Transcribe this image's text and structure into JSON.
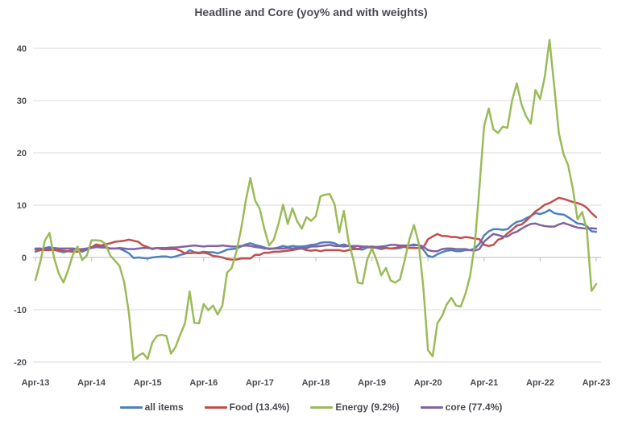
{
  "title": "Headline and Core (yoy% and with weights)",
  "colors": {
    "grid": "#e2e2e2",
    "axis": "#c6c6c6",
    "text": "#4a4a52",
    "background": "#ffffff",
    "series_blue": "#4F81BD",
    "series_red": "#C0504D",
    "series_green": "#9BBB59",
    "series_purple": "#8064A2"
  },
  "y_axis": {
    "tick_labels": [
      "40",
      "30",
      "20",
      "10",
      "0",
      "-10",
      "-20"
    ],
    "tick_values": [
      40,
      30,
      20,
      10,
      0,
      -10,
      -20
    ],
    "min": -20,
    "max": 40
  },
  "x_axis": {
    "tick_labels": [
      "Apr-13",
      "Apr-14",
      "Apr-15",
      "Apr-16",
      "Apr-17",
      "Apr-18",
      "Apr-19",
      "Apr-20",
      "Apr-21",
      "Apr-22",
      "Apr-23"
    ]
  },
  "chart_data": {
    "type": "line",
    "title": "Headline and Core (yoy% and with weights)",
    "x_unit": "month",
    "x_range": "Apr-2013 to Apr-2023 (monthly, 121 points)",
    "x_tick_labels": [
      "Apr-13",
      "Apr-14",
      "Apr-15",
      "Apr-16",
      "Apr-17",
      "Apr-18",
      "Apr-19",
      "Apr-20",
      "Apr-21",
      "Apr-22",
      "Apr-23"
    ],
    "ylim": [
      -20,
      40
    ],
    "grid": "horizontal",
    "legend_position": "bottom",
    "series": [
      {
        "name": "all items",
        "color": "#4F81BD",
        "values": [
          1.1,
          1.4,
          1.8,
          2.0,
          1.5,
          1.2,
          1.0,
          1.2,
          1.5,
          1.6,
          1.1,
          1.5,
          2.0,
          2.1,
          2.1,
          2.0,
          1.7,
          1.7,
          1.7,
          1.3,
          0.8,
          -0.1,
          0.0,
          -0.1,
          -0.2,
          0.0,
          0.1,
          0.2,
          0.2,
          0.0,
          0.2,
          0.5,
          0.7,
          1.4,
          1.0,
          0.9,
          1.1,
          1.0,
          1.0,
          0.8,
          1.1,
          1.5,
          1.6,
          1.7,
          2.1,
          2.5,
          2.7,
          2.4,
          2.2,
          1.9,
          1.6,
          1.7,
          1.9,
          2.2,
          2.0,
          2.2,
          2.1,
          2.1,
          2.2,
          2.4,
          2.5,
          2.8,
          2.9,
          2.9,
          2.7,
          2.3,
          2.5,
          2.2,
          1.9,
          1.6,
          1.5,
          1.9,
          2.0,
          1.8,
          1.6,
          1.8,
          1.7,
          1.7,
          1.8,
          2.1,
          2.3,
          2.5,
          2.3,
          1.5,
          0.3,
          0.1,
          0.6,
          1.0,
          1.3,
          1.4,
          1.2,
          1.2,
          1.4,
          1.4,
          1.7,
          2.6,
          4.2,
          5.0,
          5.4,
          5.4,
          5.3,
          5.4,
          6.2,
          6.8,
          7.0,
          7.5,
          7.9,
          8.5,
          8.3,
          8.6,
          9.1,
          8.5,
          8.3,
          8.2,
          7.7,
          7.1,
          6.5,
          6.4,
          6.0,
          5.0,
          4.9
        ]
      },
      {
        "name": "Food (13.4%)",
        "color": "#C0504D",
        "values": [
          1.5,
          1.4,
          1.4,
          1.4,
          1.4,
          1.4,
          1.3,
          1.2,
          1.1,
          1.1,
          1.4,
          1.7,
          1.9,
          2.5,
          2.3,
          2.5,
          2.7,
          3.0,
          3.1,
          3.2,
          3.4,
          3.2,
          3.0,
          2.3,
          2.0,
          1.6,
          1.8,
          1.6,
          1.6,
          1.6,
          1.6,
          1.3,
          0.8,
          0.8,
          0.9,
          0.8,
          0.9,
          0.7,
          0.3,
          0.2,
          0.0,
          -0.3,
          -0.4,
          -0.4,
          -0.2,
          -0.2,
          -0.2,
          0.5,
          0.5,
          0.9,
          0.9,
          1.1,
          1.1,
          1.2,
          1.3,
          1.4,
          1.6,
          1.7,
          1.4,
          1.3,
          1.4,
          1.2,
          1.4,
          1.4,
          1.4,
          1.4,
          1.2,
          1.4,
          1.6,
          1.6,
          2.0,
          2.1,
          1.8,
          2.0,
          1.9,
          1.8,
          1.7,
          1.8,
          2.1,
          2.0,
          1.8,
          1.8,
          1.8,
          1.9,
          3.5,
          4.0,
          4.5,
          4.1,
          4.1,
          3.9,
          3.9,
          3.7,
          3.9,
          3.8,
          3.6,
          3.5,
          2.4,
          2.2,
          2.4,
          3.4,
          3.7,
          4.6,
          5.3,
          6.1,
          6.3,
          7.0,
          7.9,
          8.8,
          9.4,
          10.1,
          10.4,
          10.9,
          11.4,
          11.2,
          10.9,
          10.6,
          10.4,
          10.1,
          9.5,
          8.5,
          7.7
        ]
      },
      {
        "name": "Energy (9.2%)",
        "color": "#9BBB59",
        "values": [
          -4.3,
          -1.0,
          3.2,
          4.7,
          -0.1,
          -3.1,
          -4.8,
          -2.4,
          0.5,
          2.1,
          -0.5,
          0.4,
          3.3,
          3.3,
          3.2,
          2.6,
          0.4,
          -0.6,
          -1.6,
          -4.8,
          -10.6,
          -19.6,
          -18.8,
          -18.3,
          -19.4,
          -16.3,
          -15.0,
          -14.8,
          -15.0,
          -18.4,
          -17.1,
          -14.7,
          -12.6,
          -6.5,
          -12.5,
          -12.6,
          -8.9,
          -10.1,
          -9.2,
          -10.9,
          -9.2,
          -2.9,
          -2.0,
          1.1,
          5.4,
          10.8,
          15.2,
          10.9,
          9.3,
          5.4,
          2.3,
          3.4,
          6.4,
          10.1,
          6.4,
          9.4,
          6.9,
          5.5,
          7.7,
          7.0,
          7.9,
          11.7,
          12.0,
          12.1,
          10.2,
          4.8,
          8.9,
          3.1,
          -0.3,
          -4.8,
          -5.0,
          -0.4,
          1.7,
          -0.5,
          -3.4,
          -2.0,
          -4.4,
          -4.8,
          -4.2,
          -0.6,
          3.4,
          6.2,
          2.8,
          -5.7,
          -17.7,
          -18.9,
          -12.6,
          -11.2,
          -9.0,
          -7.7,
          -9.2,
          -9.4,
          -7.0,
          -3.6,
          2.4,
          13.2,
          25.1,
          28.5,
          24.5,
          23.8,
          25.0,
          24.8,
          30.0,
          33.3,
          29.3,
          27.0,
          25.6,
          32.0,
          30.3,
          34.6,
          41.6,
          32.9,
          23.8,
          19.8,
          17.6,
          13.1,
          7.3,
          8.7,
          5.2,
          -6.4,
          -5.1
        ]
      },
      {
        "name": "core (77.4%)",
        "color": "#8064A2",
        "values": [
          1.7,
          1.7,
          1.6,
          1.7,
          1.8,
          1.7,
          1.7,
          1.7,
          1.7,
          1.6,
          1.6,
          1.7,
          1.8,
          2.0,
          1.9,
          1.9,
          1.7,
          1.7,
          1.8,
          1.7,
          1.6,
          1.6,
          1.7,
          1.8,
          1.8,
          1.7,
          1.8,
          1.8,
          1.8,
          1.9,
          1.9,
          2.0,
          2.1,
          2.2,
          2.3,
          2.2,
          2.1,
          2.2,
          2.2,
          2.2,
          2.3,
          2.2,
          2.1,
          2.1,
          2.2,
          2.3,
          2.2,
          2.0,
          1.9,
          1.7,
          1.7,
          1.7,
          1.7,
          1.7,
          1.8,
          1.7,
          1.8,
          1.8,
          1.8,
          2.1,
          2.1,
          2.2,
          2.3,
          2.4,
          2.2,
          2.2,
          2.1,
          2.2,
          2.2,
          2.2,
          2.1,
          2.0,
          2.1,
          2.0,
          2.1,
          2.2,
          2.4,
          2.4,
          2.3,
          2.3,
          2.3,
          2.3,
          2.4,
          2.1,
          1.4,
          1.2,
          1.2,
          1.6,
          1.7,
          1.7,
          1.6,
          1.6,
          1.6,
          1.4,
          1.3,
          1.6,
          3.0,
          3.8,
          4.5,
          4.3,
          4.0,
          4.0,
          4.6,
          4.9,
          5.5,
          6.0,
          6.4,
          6.5,
          6.2,
          6.0,
          5.9,
          5.9,
          6.3,
          6.6,
          6.3,
          6.0,
          5.7,
          5.6,
          5.5,
          5.6,
          5.5
        ]
      }
    ]
  }
}
